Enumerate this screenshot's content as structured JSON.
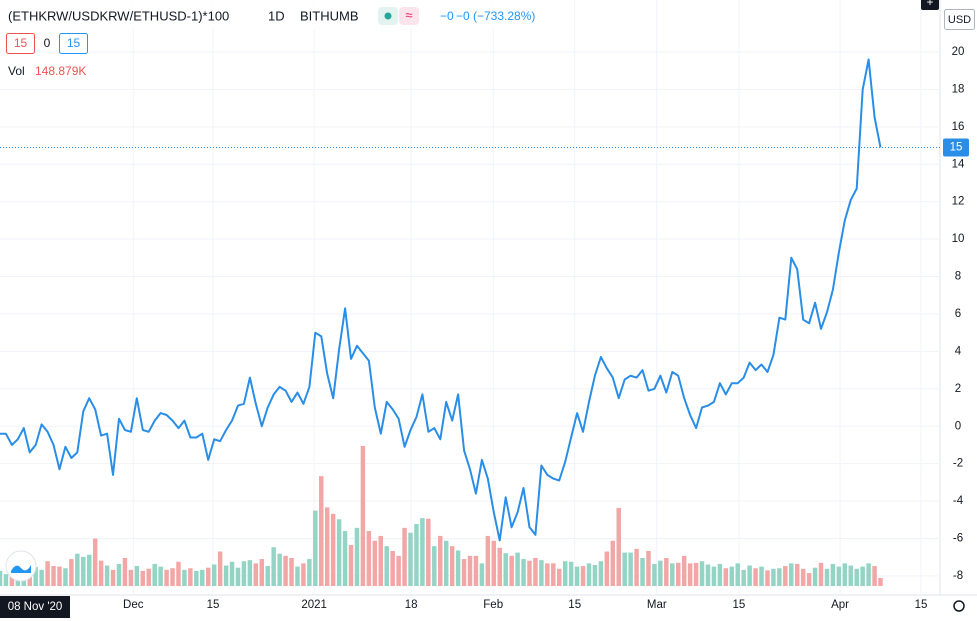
{
  "chart_data": {
    "type": "line",
    "title": "(ETHKRW/USDKRW/ETHUSD-1)*100",
    "interval": "1D",
    "exchange": "BITHUMB",
    "legend_values": [
      "−0",
      "−0",
      "(−733.28%)"
    ],
    "sell_button": "15",
    "spread": "0",
    "buy_button": "15",
    "volume_label": "Vol",
    "volume_value_label": "148.879K",
    "currency": "USD",
    "crosshair_date": "08 Nov '20",
    "price_tag": {
      "value": 14.9,
      "label": "15"
    },
    "series": [
      {
        "color": "#2a8ee6",
        "values": [
          -0.4,
          -0.4,
          -1.0,
          -0.7,
          -0.1,
          -1.4,
          -1.0,
          0.1,
          -0.3,
          -1.0,
          -2.3,
          -1.1,
          -1.7,
          -1.4,
          0.8,
          1.5,
          0.9,
          -0.5,
          -0.4,
          -2.6,
          0.4,
          -0.2,
          -0.3,
          1.5,
          -0.2,
          -0.3,
          0.3,
          0.7,
          0.6,
          0.3,
          -0.1,
          0.3,
          -0.6,
          -0.6,
          -0.4,
          -1.8,
          -0.7,
          -0.8,
          -0.2,
          0.3,
          1.1,
          1.2,
          2.6,
          1.2,
          0,
          1.0,
          1.7,
          2.1,
          1.9,
          1.3,
          1.8,
          1.2,
          2.1,
          5.0,
          4.8,
          2.8,
          1.5,
          4.1,
          6.3,
          3.6,
          4.3,
          3.9,
          3.5,
          1.0,
          -0.4,
          1.3,
          0.9,
          0.4,
          -1.1,
          -0.2,
          0.5,
          1.7,
          -0.3,
          -0.1,
          -0.7,
          1.3,
          0.3,
          1.7,
          -1.3,
          -2.3,
          -3.6,
          -1.8,
          -2.8,
          -4.6,
          -6.1,
          -3.8,
          -5.4,
          -4.6,
          -3.3,
          -5.4,
          -5.8,
          -2.1,
          -2.6,
          -2.8,
          -2.9,
          -1.9,
          -0.6,
          0.7,
          -0.3,
          1.3,
          2.7,
          3.7,
          3.1,
          2.6,
          1.5,
          2.5,
          2.7,
          2.6,
          3.0,
          1.9,
          2.0,
          2.7,
          1.8,
          2.9,
          2.7,
          1.5,
          0.6,
          -0.1,
          1.0,
          1.1,
          1.3,
          2.3,
          1.7,
          2.3,
          2.3,
          2.6,
          3.4,
          3.0,
          3.3,
          2.9,
          3.8,
          5.8,
          5.7,
          9.0,
          8.4,
          5.7,
          5.5,
          6.6,
          5.2,
          6.1,
          7.3,
          9.3,
          11.0,
          12.1,
          12.7,
          18.0,
          19.6,
          16.5,
          14.9
        ]
      },
      {
        "type": "bar",
        "color_up": "#93d4c5",
        "color_down": "#f2a6a5",
        "values": [
          280,
          220,
          260,
          300,
          240,
          280,
          350,
          300,
          460,
          370,
          360,
          330,
          500,
          600,
          540,
          580,
          880,
          470,
          380,
          300,
          410,
          520,
          300,
          370,
          280,
          320,
          410,
          360,
          300,
          330,
          450,
          300,
          330,
          280,
          300,
          340,
          400,
          640,
          380,
          450,
          340,
          460,
          480,
          420,
          500,
          370,
          720,
          600,
          560,
          520,
          360,
          420,
          500,
          1400,
          2040,
          1460,
          1340,
          1240,
          1020,
          760,
          1080,
          2600,
          1020,
          840,
          930,
          740,
          650,
          560,
          1080,
          990,
          1150,
          1260,
          1250,
          740,
          930,
          840,
          740,
          660,
          500,
          560,
          560,
          420,
          930,
          840,
          710,
          610,
          560,
          620,
          500,
          470,
          520,
          480,
          420,
          420,
          320,
          460,
          450,
          360,
          370,
          420,
          390,
          460,
          640,
          840,
          1450,
          620,
          620,
          690,
          520,
          650,
          410,
          470,
          520,
          420,
          430,
          560,
          420,
          430,
          460,
          400,
          360,
          410,
          330,
          360,
          420,
          300,
          380,
          330,
          360,
          290,
          320,
          330,
          370,
          420,
          410,
          320,
          240,
          340,
          430,
          320,
          410,
          360,
          420,
          380,
          320,
          360,
          420,
          370,
          148.879
        ]
      }
    ],
    "xlim": [
      0,
      158
    ],
    "xticks": [
      {
        "value": 22.4,
        "label": "Dec"
      },
      {
        "value": 35.8,
        "label": "15"
      },
      {
        "value": 52.8,
        "label": "2021"
      },
      {
        "value": 69.1,
        "label": "18"
      },
      {
        "value": 82.9,
        "label": "Feb"
      },
      {
        "value": 96.6,
        "label": "15"
      },
      {
        "value": 110.4,
        "label": "Mar"
      },
      {
        "value": 124.2,
        "label": "15"
      },
      {
        "value": 141.2,
        "label": "Apr"
      },
      {
        "value": 154.8,
        "label": "15"
      }
    ],
    "ylim": [
      -9.02,
      22.78
    ],
    "yticks": [
      -8,
      -6,
      -4,
      -2,
      0,
      2,
      4,
      6,
      8,
      10,
      12,
      14,
      16,
      18,
      20
    ]
  }
}
